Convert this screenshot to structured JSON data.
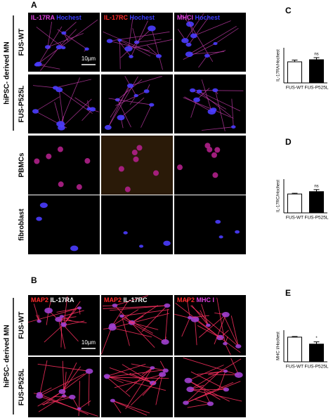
{
  "panels": {
    "A": {
      "letter": "A",
      "group_label": "hiPSC- derived MN",
      "scale_bar": "10µm",
      "columns": [
        {
          "marker": "IL-17RA",
          "marker_color": "#e040e0",
          "counterstain": "Hochest",
          "counterstain_color": "#3a3aff"
        },
        {
          "marker": "IL-17RC",
          "marker_color": "#ff2a2a",
          "counterstain": "Hochest",
          "counterstain_color": "#3a3aff"
        },
        {
          "marker": "MHCI",
          "marker_color": "#e040e0",
          "counterstain": "Hochest",
          "counterstain_color": "#3a3aff"
        }
      ],
      "rows": [
        "FUS-WT",
        "FUS-P525L",
        "PBMCs",
        "fibroblast"
      ]
    },
    "B": {
      "letter": "B",
      "group_label": "hiPSC- derived MN",
      "scale_bar": "10µm",
      "columns": [
        {
          "marker": "MAP2",
          "marker_color": "#ff2a2a",
          "counterstain": "IL-17RA",
          "counterstain_color": "#ffffff"
        },
        {
          "marker": "MAP2",
          "marker_color": "#ff2a2a",
          "counterstain": "IL-17RC",
          "counterstain_color": "#ffffff"
        },
        {
          "marker": "MAP2",
          "marker_color": "#ff2a2a",
          "counterstain": "MHC I",
          "counterstain_color": "#e040e0"
        }
      ],
      "rows": [
        "FUS-WT",
        "FUS-P525L"
      ]
    }
  },
  "chart_data": [
    {
      "type": "bar",
      "letter": "C",
      "y_label": "IL-17RA/Hochest",
      "categories": [
        "FUS-WT",
        "FUS-P525L"
      ],
      "values": [
        0.6,
        0.66
      ],
      "errors": [
        0.05,
        0.06
      ],
      "colors": [
        "#ffffff",
        "#000000"
      ],
      "annotation": "ns",
      "ylim": [
        0,
        1
      ]
    },
    {
      "type": "bar",
      "letter": "D",
      "y_label": "IL-17RC/Hochest",
      "categories": [
        "FUS-WT",
        "FUS-P525L"
      ],
      "values": [
        0.56,
        0.63
      ],
      "errors": [
        0.02,
        0.06
      ],
      "colors": [
        "#ffffff",
        "#000000"
      ],
      "annotation": "ns",
      "ylim": [
        0,
        1
      ]
    },
    {
      "type": "bar",
      "letter": "E",
      "y_label": "MHC I/Hochest",
      "categories": [
        "FUS-WT",
        "FUS-P525L"
      ],
      "values": [
        0.78,
        0.56
      ],
      "errors": [
        0.02,
        0.07
      ],
      "colors": [
        "#ffffff",
        "#000000"
      ],
      "annotation": "*",
      "ylim": [
        0,
        1
      ]
    }
  ]
}
